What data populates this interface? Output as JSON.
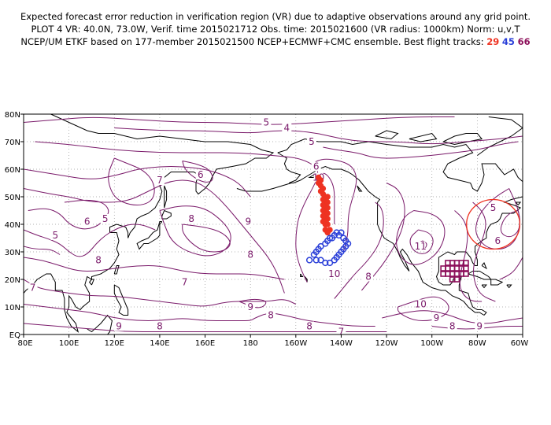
{
  "header": {
    "line1": "Expected forecast error reduction in verification region (VR) due to adaptive observations around any grid point.",
    "line2": "PLOT 4 VR: 40.0N, 73.0W, Verif. time 2015021712 Obs. time: 2015021600 (VR radius: 1000km) Norm: u,v,T",
    "line3_prefix": "NCEP/UM ETKF based on 177-member 2015021500 NCEP+ECMWF+CMC ensemble. Best flight tracks:",
    "tracks": [
      {
        "id": "29",
        "color": "#ee3322"
      },
      {
        "id": "45",
        "color": "#2a3fd8"
      },
      {
        "id": "66",
        "color": "#8c0f5a"
      }
    ]
  },
  "map": {
    "lat_labels": [
      "80N",
      "70N",
      "60N",
      "50N",
      "40N",
      "30N",
      "20N",
      "10N",
      "EQ"
    ],
    "lon_labels": [
      "80E",
      "100E",
      "120E",
      "140E",
      "160E",
      "180",
      "160W",
      "140W",
      "120W",
      "100W",
      "80W",
      "60W"
    ],
    "contour_color": "#7a1a6a",
    "contour_labels": [
      {
        "text": "5",
        "lon": -173,
        "lat": 77
      },
      {
        "text": "4",
        "lon": -164,
        "lat": 75
      },
      {
        "text": "5",
        "lon": -153,
        "lat": 70
      },
      {
        "text": "6",
        "lon": -151,
        "lat": 61
      },
      {
        "text": "10",
        "lon": -150,
        "lat": 57
      },
      {
        "text": "7",
        "lon": 140,
        "lat": 56
      },
      {
        "text": "6",
        "lon": 158,
        "lat": 58
      },
      {
        "text": "6",
        "lon": 108,
        "lat": 41
      },
      {
        "text": "5",
        "lon": 94,
        "lat": 36
      },
      {
        "text": "5",
        "lon": 116,
        "lat": 42
      },
      {
        "text": "8",
        "lon": 154,
        "lat": 42
      },
      {
        "text": "9",
        "lon": 179,
        "lat": 41
      },
      {
        "text": "8",
        "lon": 113,
        "lat": 27
      },
      {
        "text": "8",
        "lon": 180,
        "lat": 29
      },
      {
        "text": "7",
        "lon": 151,
        "lat": 19
      },
      {
        "text": "9",
        "lon": 180,
        "lat": 10
      },
      {
        "text": "8",
        "lon": -171,
        "lat": 7
      },
      {
        "text": "7",
        "lon": 84,
        "lat": 17
      },
      {
        "text": "9",
        "lon": 122,
        "lat": 3
      },
      {
        "text": "8",
        "lon": 140,
        "lat": 3
      },
      {
        "text": "8",
        "lon": -154,
        "lat": 3
      },
      {
        "text": "7",
        "lon": -140,
        "lat": 1
      },
      {
        "text": "10",
        "lon": -143,
        "lat": 22
      },
      {
        "text": "8",
        "lon": -128,
        "lat": 21
      },
      {
        "text": "11",
        "lon": -105,
        "lat": 32
      },
      {
        "text": "10",
        "lon": -105,
        "lat": 11
      },
      {
        "text": "9",
        "lon": -98,
        "lat": 6
      },
      {
        "text": "8",
        "lon": -91,
        "lat": 3
      },
      {
        "text": "9",
        "lon": -79,
        "lat": 3
      },
      {
        "text": "5",
        "lon": -73,
        "lat": 46
      },
      {
        "text": "6",
        "lon": -71,
        "lat": 34
      }
    ],
    "verification_region": {
      "center_lat": 40.0,
      "center_lon": -73.0,
      "radius_km": 1000
    },
    "track_29_points": [
      [
        -150,
        57
      ],
      [
        -149,
        56
      ],
      [
        -150,
        55
      ],
      [
        -149,
        54
      ],
      [
        -148,
        53
      ],
      [
        -149,
        52
      ],
      [
        -148,
        51
      ],
      [
        -147,
        50
      ],
      [
        -148,
        49
      ],
      [
        -147,
        48
      ],
      [
        -148,
        47
      ],
      [
        -147,
        46
      ],
      [
        -148,
        45
      ],
      [
        -147,
        44
      ],
      [
        -148,
        43
      ],
      [
        -147,
        42
      ],
      [
        -148,
        41
      ],
      [
        -147,
        40
      ],
      [
        -146,
        50
      ],
      [
        -146,
        48
      ],
      [
        -146,
        46
      ],
      [
        -146,
        44
      ],
      [
        -146,
        42
      ],
      [
        -146,
        40
      ],
      [
        -145,
        38
      ],
      [
        -147,
        38
      ],
      [
        -146,
        37
      ]
    ],
    "track_45_points": [
      [
        -154,
        27
      ],
      [
        -152,
        29
      ],
      [
        -151,
        30
      ],
      [
        -150,
        31
      ],
      [
        -149,
        32
      ],
      [
        -147,
        33
      ],
      [
        -146,
        34
      ],
      [
        -145,
        35
      ],
      [
        -143,
        36
      ],
      [
        -141,
        36
      ],
      [
        -139,
        35
      ],
      [
        -138,
        34
      ],
      [
        -137,
        33
      ],
      [
        -138,
        32
      ],
      [
        -139,
        31
      ],
      [
        -140,
        30
      ],
      [
        -141,
        29
      ],
      [
        -142,
        28
      ],
      [
        -143,
        27
      ],
      [
        -145,
        26
      ],
      [
        -147,
        26
      ],
      [
        -149,
        27
      ],
      [
        -151,
        27
      ],
      [
        -144,
        35
      ],
      [
        -142,
        37
      ],
      [
        -140,
        37
      ]
    ],
    "track_66_boxes": [
      [
        -93,
        26
      ],
      [
        -91,
        26
      ],
      [
        -89,
        26
      ],
      [
        -87,
        26
      ],
      [
        -85,
        26
      ],
      [
        -95,
        24
      ],
      [
        -93,
        24
      ],
      [
        -91,
        24
      ],
      [
        -89,
        24
      ],
      [
        -87,
        24
      ],
      [
        -85,
        24
      ],
      [
        -95,
        22
      ],
      [
        -93,
        22
      ],
      [
        -91,
        22
      ],
      [
        -89,
        22
      ],
      [
        -87,
        22
      ],
      [
        -85,
        22
      ],
      [
        -91,
        20
      ],
      [
        -89,
        20
      ]
    ]
  }
}
